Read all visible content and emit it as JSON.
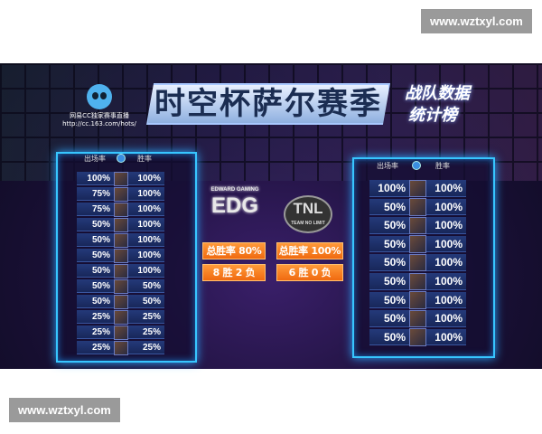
{
  "watermark": "www.wztxyl.com",
  "title": "时空杯萨尔赛季",
  "subtitle": [
    "战队数据",
    "统计榜"
  ],
  "broadcaster": {
    "name": "网易CC独家赛事直播",
    "url": "http://cc.163.com/hots/"
  },
  "headers": {
    "appearance": "出场率",
    "win": "胜率"
  },
  "colors": {
    "panel_border": "#37c6ff",
    "badge": "#f47a1f"
  },
  "teams": [
    {
      "logo": "EDG",
      "logo_small": "EDWARD GAMING",
      "win_rate": "总胜率 80%",
      "record": "8 胜 2 负",
      "heroes": [
        [
          "100%",
          "100%"
        ],
        [
          "75%",
          "100%"
        ],
        [
          "75%",
          "100%"
        ],
        [
          "50%",
          "100%"
        ],
        [
          "50%",
          "100%"
        ],
        [
          "50%",
          "100%"
        ],
        [
          "50%",
          "100%"
        ],
        [
          "50%",
          "50%"
        ],
        [
          "50%",
          "50%"
        ],
        [
          "25%",
          "25%"
        ],
        [
          "25%",
          "25%"
        ],
        [
          "25%",
          "25%"
        ]
      ]
    },
    {
      "logo": "TNL",
      "logo_small": "TEAM NO LIMIT",
      "win_rate": "总胜率 100%",
      "record": "6 胜 0 负",
      "heroes": [
        [
          "100%",
          "100%"
        ],
        [
          "50%",
          "100%"
        ],
        [
          "50%",
          "100%"
        ],
        [
          "50%",
          "100%"
        ],
        [
          "50%",
          "100%"
        ],
        [
          "50%",
          "100%"
        ],
        [
          "50%",
          "100%"
        ],
        [
          "50%",
          "100%"
        ],
        [
          "50%",
          "100%"
        ]
      ]
    }
  ]
}
